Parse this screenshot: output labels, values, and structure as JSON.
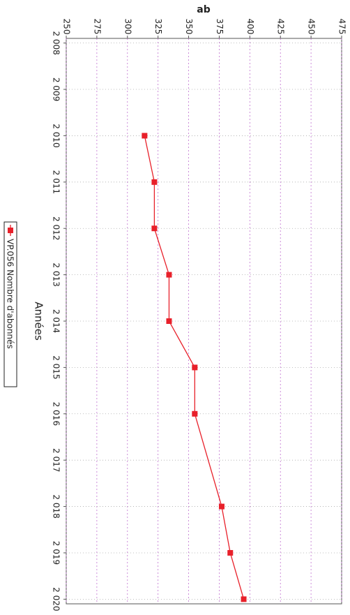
{
  "chart_data": {
    "type": "line",
    "title": "ab",
    "x_label": "Années",
    "x": [
      2010,
      2011,
      2012,
      2013,
      2014,
      2015,
      2016,
      2018,
      2019,
      2020
    ],
    "series": [
      {
        "name": "VP.056 Nombre d'abonnés",
        "color": "#e8202a",
        "values": [
          314,
          322,
          322,
          334,
          334,
          355,
          355,
          377,
          384,
          395
        ]
      }
    ],
    "xlim": [
      2007.9,
      2020.1
    ],
    "xticks": [
      {
        "value": 2008,
        "label": "2 008"
      },
      {
        "value": 2009,
        "label": "2 009"
      },
      {
        "value": 2010,
        "label": "2 010"
      },
      {
        "value": 2011,
        "label": "2 011"
      },
      {
        "value": 2012,
        "label": "2 012"
      },
      {
        "value": 2013,
        "label": "2 013"
      },
      {
        "value": 2014,
        "label": "2 014"
      },
      {
        "value": 2015,
        "label": "2 015"
      },
      {
        "value": 2016,
        "label": "2 016"
      },
      {
        "value": 2017,
        "label": "2 017"
      },
      {
        "value": 2018,
        "label": "2 018"
      },
      {
        "value": 2019,
        "label": "2 019"
      },
      {
        "value": 2020,
        "label": "2 020"
      }
    ],
    "ylim": [
      250,
      475
    ],
    "yticks": [
      250,
      275,
      300,
      325,
      350,
      375,
      400,
      425,
      450,
      475
    ],
    "grid": true
  }
}
